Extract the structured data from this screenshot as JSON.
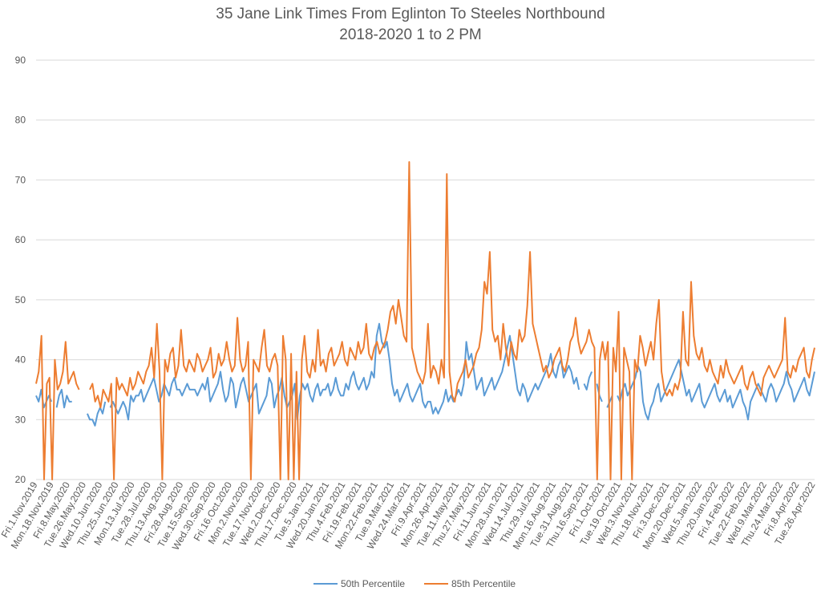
{
  "chart_data": {
    "type": "line",
    "title": "35 Jane Link Times From Eglinton To Steeles Northbound",
    "subtitle": "2018-2020 1 to 2 PM",
    "xlabel": "",
    "ylabel": "",
    "ylim": [
      20,
      90
    ],
    "y_ticks": [
      20,
      30,
      40,
      50,
      60,
      70,
      80,
      90
    ],
    "grid": "horizontal",
    "legend_position": "bottom",
    "x_tick_labels": [
      "Fri.1.Nov.2019",
      "Mon.18.Nov.2019",
      "Fri.8.May.2020",
      "Tue.26.May.2020",
      "Wed.10.Jun.2020",
      "Thu.25.Jun.2020",
      "Mon.13.Jul.2020",
      "Tue.28.Jul.2020",
      "Thu.13.Aug.2020",
      "Fri.28.Aug.2020",
      "Tue.15.Sep.2020",
      "Wed.30.Sep.2020",
      "Fri.16.Oct.2020",
      "Mon.2.Nov.2020",
      "Tue.17.Nov.2020",
      "Wed.2.Dec.2020",
      "Thu.17.Dec.2020",
      "Tue.5.Jan.2021",
      "Wed.20.Jan.2021",
      "Thu.4.Feb.2021",
      "Fri.19.Feb.2021",
      "Mon.22.Feb.2021",
      "Tue.9.Mar.2021",
      "Wed.24.Mar.2021",
      "Fri.9.Apr.2021",
      "Mon.26.Apr.2021",
      "Tue.11.May.2021",
      "Thu.27.May.2021",
      "Fri.11.Jun.2021",
      "Mon.28.Jun.2021",
      "Wed.14.Jul.2021",
      "Thu.29.Jul.2021",
      "Mon.16.Aug.2021",
      "Tue.31.Aug.2021",
      "Thu.16.Sep.2021",
      "Fri.1.Oct.2021",
      "Tue.19.Oct.2021",
      "Wed.3.Nov.2021",
      "Thu.18.Nov.2021",
      "Fri.3.Dec.2021",
      "Mon.20.Dec.2021",
      "Wed.5.Jan.2022",
      "Thu.20.Jan.2022",
      "Fri.4.Feb.2022",
      "Tue.22.Feb.2022",
      "Wed.9.Mar.2022",
      "Thu.24.Mar.2022",
      "Fri.8.Apr.2022",
      "Tue.26.Apr.2022"
    ],
    "series": [
      {
        "name": "50th Percentile",
        "color": "#5b9bd5",
        "values": [
          34,
          33,
          35,
          32,
          33,
          34,
          33,
          null,
          32,
          34,
          35,
          32,
          34,
          33,
          33,
          null,
          null,
          null,
          null,
          null,
          31,
          30,
          30,
          29,
          31,
          32,
          31,
          33,
          null,
          32,
          33,
          32,
          31,
          32,
          33,
          32,
          30,
          34,
          33,
          34,
          34,
          35,
          33,
          34,
          35,
          36,
          37,
          35,
          33,
          34,
          36,
          35,
          34,
          36,
          37,
          35,
          35,
          34,
          35,
          36,
          35,
          35,
          35,
          34,
          35,
          36,
          35,
          37,
          33,
          34,
          35,
          36,
          38,
          35,
          33,
          34,
          37,
          36,
          32,
          34,
          36,
          37,
          35,
          33,
          34,
          35,
          36,
          31,
          32,
          33,
          34,
          37,
          36,
          32,
          34,
          35,
          37,
          34,
          32,
          33,
          34,
          36,
          30,
          34,
          36,
          35,
          36,
          34,
          33,
          35,
          36,
          34,
          35,
          35,
          36,
          34,
          35,
          37,
          35,
          34,
          34,
          36,
          35,
          37,
          38,
          36,
          35,
          36,
          37,
          35,
          36,
          38,
          37,
          44,
          46,
          43,
          42,
          43,
          40,
          36,
          34,
          35,
          33,
          34,
          35,
          36,
          34,
          33,
          34,
          35,
          36,
          33,
          32,
          33,
          33,
          31,
          32,
          31,
          32,
          33,
          35,
          33,
          34,
          33,
          34,
          35,
          34,
          36,
          43,
          40,
          41,
          38,
          35,
          36,
          37,
          34,
          35,
          36,
          37,
          35,
          36,
          37,
          38,
          40,
          42,
          44,
          41,
          38,
          35,
          34,
          36,
          35,
          33,
          34,
          35,
          36,
          35,
          36,
          37,
          38,
          39,
          41,
          38,
          37,
          39,
          40,
          37,
          38,
          39,
          38,
          36,
          37,
          35,
          null,
          36,
          35,
          37,
          38,
          null,
          36,
          34,
          33,
          null,
          32,
          33,
          34,
          null,
          34,
          33,
          35,
          36,
          34,
          35,
          36,
          37,
          39,
          38,
          33,
          31,
          30,
          32,
          33,
          35,
          36,
          33,
          34,
          35,
          36,
          37,
          38,
          39,
          40,
          38,
          36,
          34,
          35,
          33,
          34,
          35,
          36,
          33,
          32,
          33,
          34,
          35,
          36,
          34,
          33,
          34,
          35,
          33,
          34,
          32,
          33,
          34,
          35,
          33,
          32,
          30,
          33,
          34,
          35,
          36,
          35,
          34,
          33,
          35,
          36,
          35,
          33,
          34,
          35,
          36,
          38,
          36,
          35,
          33,
          34,
          35,
          36,
          37,
          35,
          34,
          36,
          38
        ]
      },
      {
        "name": "85th Percentile",
        "color": "#ed7d31",
        "values": [
          36,
          38,
          44,
          20,
          36,
          37,
          20,
          40,
          35,
          36,
          38,
          43,
          36,
          37,
          38,
          36,
          35,
          null,
          null,
          null,
          35,
          36,
          33,
          34,
          32,
          35,
          34,
          33,
          36,
          20,
          37,
          35,
          36,
          35,
          34,
          37,
          35,
          36,
          38,
          37,
          36,
          38,
          39,
          42,
          37,
          46,
          38,
          20,
          40,
          38,
          41,
          42,
          37,
          39,
          45,
          39,
          38,
          40,
          39,
          38,
          41,
          40,
          38,
          39,
          40,
          42,
          37,
          38,
          41,
          39,
          40,
          43,
          40,
          38,
          39,
          47,
          40,
          38,
          39,
          43,
          20,
          40,
          39,
          38,
          42,
          45,
          39,
          38,
          40,
          41,
          39,
          20,
          44,
          40,
          20,
          41,
          20,
          38,
          20,
          40,
          44,
          38,
          37,
          40,
          38,
          45,
          39,
          40,
          38,
          41,
          42,
          39,
          40,
          41,
          43,
          40,
          39,
          42,
          41,
          40,
          43,
          41,
          42,
          46,
          41,
          40,
          42,
          43,
          41,
          42,
          43,
          45,
          48,
          49,
          46,
          50,
          47,
          44,
          43,
          73,
          42,
          40,
          38,
          37,
          36,
          38,
          46,
          37,
          39,
          38,
          36,
          40,
          37,
          71,
          38,
          34,
          33,
          36,
          37,
          38,
          40,
          37,
          38,
          39,
          41,
          42,
          45,
          53,
          51,
          58,
          45,
          43,
          44,
          40,
          46,
          42,
          39,
          43,
          41,
          40,
          45,
          43,
          44,
          49,
          58,
          46,
          44,
          42,
          40,
          38,
          39,
          37,
          38,
          40,
          41,
          42,
          39,
          38,
          40,
          43,
          44,
          47,
          43,
          41,
          42,
          43,
          45,
          43,
          42,
          20,
          40,
          43,
          40,
          43,
          20,
          42,
          38,
          48,
          20,
          42,
          40,
          38,
          20,
          40,
          38,
          44,
          42,
          39,
          41,
          43,
          40,
          46,
          50,
          38,
          35,
          34,
          35,
          34,
          36,
          35,
          37,
          48,
          40,
          39,
          53,
          44,
          41,
          40,
          42,
          39,
          38,
          40,
          38,
          37,
          36,
          39,
          37,
          40,
          38,
          37,
          36,
          37,
          38,
          39,
          36,
          35,
          37,
          38,
          36,
          35,
          34,
          37,
          38,
          39,
          38,
          37,
          38,
          39,
          40,
          47,
          38,
          37,
          39,
          38,
          40,
          41,
          42,
          38,
          37,
          40,
          42
        ]
      }
    ]
  },
  "colors": {
    "grid": "#d9d9d9",
    "text": "#595959"
  }
}
